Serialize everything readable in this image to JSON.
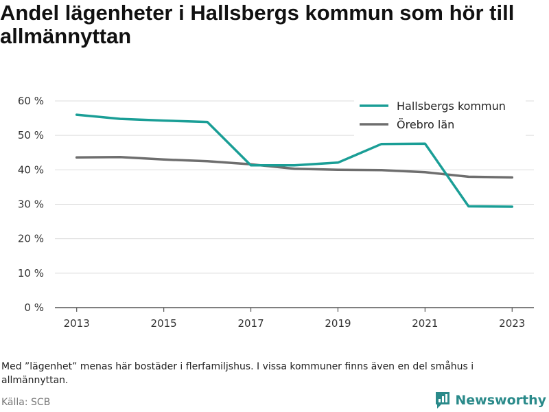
{
  "page": {
    "title": "Andel lägenheter i Hallsbergs kommun som hör till allmännyttan",
    "note": "Med ”lägenhet” menas här bostäder i flerfamiljshus. I vissa kommuner finns även en del småhus i allmännyttan.",
    "source": "Källa: SCB",
    "brand": "Newsworthy",
    "brand_icon": "newsworthy-logo-icon",
    "brand_color": "#2a8a8a"
  },
  "chart_data": {
    "type": "line",
    "title": "Andel lägenheter i Hallsbergs kommun som hör till allmännyttan",
    "x": [
      2013,
      2014,
      2015,
      2016,
      2017,
      2018,
      2019,
      2020,
      2021,
      2022,
      2023
    ],
    "xticks": [
      "2013",
      "2015",
      "2017",
      "2019",
      "2021",
      "2023"
    ],
    "xlim": [
      2012.5,
      2023.5
    ],
    "ylim": [
      0,
      60
    ],
    "yticks": [
      "0 %",
      "10 %",
      "20 %",
      "30 %",
      "40 %",
      "50 %",
      "60 %"
    ],
    "ytick_values": [
      0,
      10,
      20,
      30,
      40,
      50,
      60
    ],
    "grid": true,
    "legend_position": "top-right",
    "series": [
      {
        "name": "Hallsbergs kommun",
        "color": "#1a9e96",
        "values": [
          56.0,
          54.8,
          54.3,
          53.9,
          41.3,
          41.3,
          42.1,
          47.5,
          47.6,
          29.4,
          29.3
        ]
      },
      {
        "name": "Örebro län",
        "color": "#6e6e6e",
        "values": [
          43.6,
          43.7,
          43.0,
          42.5,
          41.6,
          40.3,
          40.0,
          39.9,
          39.3,
          38.0,
          37.8
        ]
      }
    ]
  }
}
